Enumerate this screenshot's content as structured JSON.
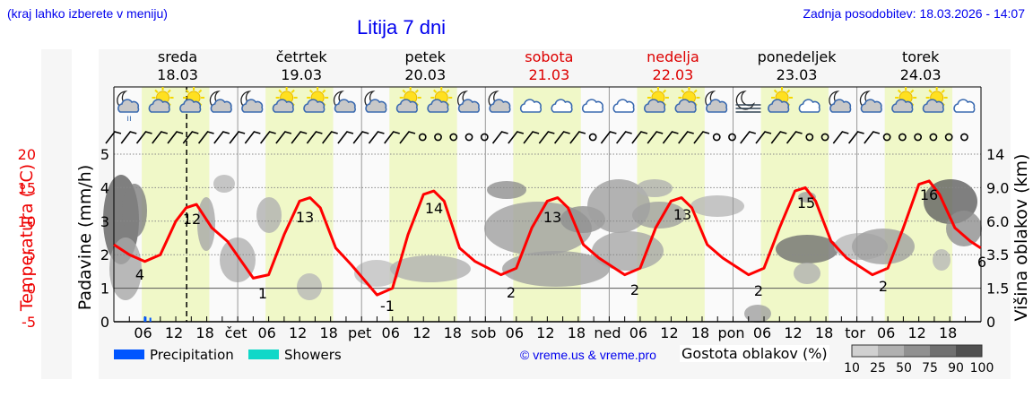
{
  "header": {
    "hint": "(kraj lahko izberete v meniju)",
    "title": "Litija 7 dni",
    "updated": "Zadnja posodobitev: 18.03.2026 - 14:07"
  },
  "days": [
    {
      "name": "sreda",
      "date": "18.03",
      "weekend": false
    },
    {
      "name": "četrtek",
      "date": "19.03",
      "weekend": false
    },
    {
      "name": "petek",
      "date": "20.03",
      "weekend": false
    },
    {
      "name": "sobota",
      "date": "21.03",
      "weekend": true
    },
    {
      "name": "nedelja",
      "date": "22.03",
      "weekend": true
    },
    {
      "name": "ponedeljek",
      "date": "23.03",
      "weekend": false
    },
    {
      "name": "torek",
      "date": "24.03",
      "weekend": false
    }
  ],
  "axes": {
    "temperature_label": "Temperatura (°C)",
    "precip_label": "Padavine (mm/h)",
    "cloud_height_label": "Višina oblakov (km)",
    "temperature_ticks": [
      "20",
      "15",
      "10",
      "5",
      "0",
      "-5"
    ],
    "precip_ticks": [
      "5",
      "4",
      "3",
      "2",
      "1",
      "0"
    ],
    "cloud_height_ticks": [
      "14",
      "9.0",
      "6.0",
      "3.5",
      "1.5",
      "0"
    ],
    "x_ticks": [
      "06",
      "12",
      "18",
      "čet",
      "06",
      "12",
      "18",
      "pet",
      "06",
      "12",
      "18",
      "sob",
      "06",
      "12",
      "18",
      "ned",
      "06",
      "12",
      "18",
      "pon",
      "06",
      "12",
      "18",
      "tor",
      "06",
      "12",
      "18"
    ]
  },
  "legend": {
    "precipitation": "Precipitation",
    "showers": "Showers",
    "precip_color": "#0055ff",
    "showers_color": "#10d8c8",
    "credit": "© vreme.us & vreme.pro",
    "cloud_density_label": "Gostota oblakov (%)",
    "cloud_density_ticks": [
      "10",
      "25",
      "50",
      "75",
      "90",
      "100"
    ],
    "cloud_density_colors": [
      "#d0d0d0",
      "#b0b0b0",
      "#909090",
      "#707070",
      "#505050"
    ]
  },
  "weather_icons": [
    "moon-cloud-rain",
    "sun-cloud",
    "sun-cloud",
    "moon-cloud",
    "moon-cloud",
    "sun-cloud",
    "sun-cloud",
    "moon-cloud",
    "moon-cloud",
    "sun-cloud",
    "sun-cloud",
    "moon-cloud",
    "moon-cloud",
    "cloud",
    "cloud",
    "cloud",
    "cloud",
    "sun-cloud",
    "sun-cloud",
    "moon-cloud",
    "moon-fog",
    "sun-cloud",
    "cloud",
    "moon-cloud",
    "moon-cloud",
    "sun-cloud",
    "sun-cloud",
    "cloud"
  ],
  "chart_data": {
    "type": "line",
    "title": "Litija 7 dni",
    "xlabel": "",
    "ylabel": "Temperatura (°C)",
    "ylim": [
      -5,
      20
    ],
    "y2label": "Padavine (mm/h)",
    "y2lim": [
      0,
      5
    ],
    "y3label": "Višina oblakov (km)",
    "current_time_marker": "18.03 14:07",
    "series": [
      {
        "name": "Temperatura",
        "color": "#ff0000",
        "x_hours": [
          0,
          3,
          6,
          9,
          12,
          14,
          16,
          19,
          22,
          27,
          30,
          33,
          36,
          38,
          40,
          43,
          46,
          51,
          54,
          57,
          60,
          62,
          64,
          67,
          70,
          75,
          78,
          81,
          84,
          86,
          88,
          91,
          94,
          99,
          102,
          105,
          108,
          110,
          112,
          115,
          118,
          123,
          126,
          129,
          132,
          134,
          136,
          139,
          142,
          147,
          150,
          153,
          156,
          158,
          160,
          163,
          166,
          168
        ],
        "values": [
          6.5,
          5,
          4,
          5,
          10,
          12,
          12.5,
          9,
          7,
          1.5,
          2,
          8,
          13,
          13.5,
          12,
          6,
          3.5,
          -1,
          0,
          8,
          14,
          14.5,
          13,
          6,
          4,
          2,
          3,
          9,
          13,
          13.5,
          12,
          6.5,
          4.5,
          2,
          3,
          9,
          13,
          13.5,
          12,
          6.5,
          4.5,
          2,
          3,
          9,
          14.5,
          15,
          13,
          7,
          4.5,
          2,
          3,
          9,
          15.5,
          16,
          14,
          9,
          7,
          6
        ]
      }
    ],
    "annotations": {
      "min_labels": [
        {
          "day": "18.03",
          "value": 4
        },
        {
          "day": "19.03",
          "value": 1
        },
        {
          "day": "20.03",
          "value": -1
        },
        {
          "day": "21.03",
          "value": 2
        },
        {
          "day": "22.03",
          "value": 2
        },
        {
          "day": "23.03",
          "value": 2
        },
        {
          "day": "24.03",
          "value": 2
        }
      ],
      "max_labels": [
        {
          "day": "18.03",
          "value": 12
        },
        {
          "day": "19.03",
          "value": 13
        },
        {
          "day": "20.03",
          "value": 14
        },
        {
          "day": "21.03",
          "value": 13
        },
        {
          "day": "22.03",
          "value": 13
        },
        {
          "day": "23.03",
          "value": 15
        },
        {
          "day": "24.03",
          "value": 16
        }
      ],
      "end_value": 6
    },
    "precipitation": [
      {
        "time": "18.03 06",
        "mm_h": 0.15
      }
    ],
    "grid": true
  }
}
